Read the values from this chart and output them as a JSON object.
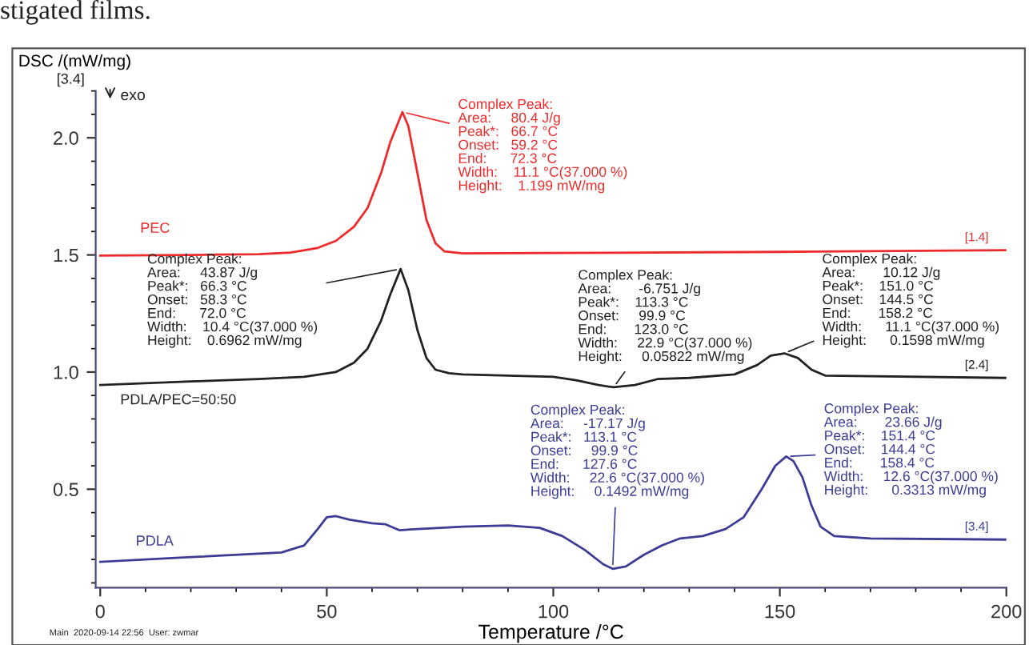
{
  "chart_data": {
    "type": "line",
    "xlabel": "Temperature /°C",
    "ylabel": "DSC /(mW/mg)",
    "xlim": [
      -1,
      200
    ],
    "ylim": [
      0.08,
      2.2
    ],
    "xticks": [
      0,
      50,
      100,
      150,
      200
    ],
    "yticks": [
      0.5,
      {
        "value": 1,
        "label": "1.0"
      },
      1.5,
      {
        "value": 2,
        "label": "2.0"
      }
    ],
    "grid": false,
    "legend": false,
    "marker": "none",
    "line_style": "solid",
    "series": [
      {
        "name": "PEC",
        "color": "#ee2a2a",
        "x": [
          0,
          20,
          35,
          42,
          48,
          52,
          56,
          59,
          62,
          64,
          66.7,
          68,
          70,
          72,
          74,
          76,
          80,
          100,
          150,
          200
        ],
        "values": [
          1.497,
          1.5,
          1.503,
          1.51,
          1.53,
          1.56,
          1.62,
          1.7,
          1.85,
          1.98,
          2.11,
          2.05,
          1.85,
          1.65,
          1.55,
          1.515,
          1.507,
          1.508,
          1.513,
          1.52
        ]
      },
      {
        "name": "PDLA/PEC=50:50",
        "color": "#222222",
        "x": [
          0,
          20,
          35,
          45,
          52,
          56,
          59,
          62,
          64,
          66.3,
          68,
          70,
          72,
          74,
          77,
          80,
          100,
          105,
          110,
          113.3,
          118,
          123,
          130,
          140,
          145,
          148,
          151,
          154,
          157,
          160,
          200
        ],
        "values": [
          0.945,
          0.96,
          0.97,
          0.98,
          1.0,
          1.04,
          1.1,
          1.22,
          1.33,
          1.44,
          1.35,
          1.18,
          1.06,
          1.01,
          0.995,
          0.99,
          0.98,
          0.965,
          0.945,
          0.935,
          0.945,
          0.97,
          0.975,
          0.99,
          1.03,
          1.07,
          1.08,
          1.06,
          1.01,
          0.985,
          0.975
        ]
      },
      {
        "name": "PDLA",
        "color": "#3c3c96",
        "x": [
          0,
          20,
          40,
          45,
          48,
          50,
          52,
          55,
          60,
          63,
          66,
          70,
          80,
          90,
          97,
          102,
          107,
          111,
          113.1,
          116,
          120,
          124,
          128,
          133,
          138,
          142,
          146,
          149,
          151.4,
          153,
          155,
          157,
          159,
          162,
          170,
          200
        ],
        "values": [
          0.19,
          0.21,
          0.23,
          0.26,
          0.33,
          0.38,
          0.385,
          0.37,
          0.355,
          0.35,
          0.325,
          0.33,
          0.34,
          0.345,
          0.335,
          0.3,
          0.24,
          0.18,
          0.16,
          0.17,
          0.22,
          0.26,
          0.29,
          0.3,
          0.33,
          0.38,
          0.5,
          0.6,
          0.64,
          0.62,
          0.55,
          0.43,
          0.34,
          0.3,
          0.29,
          0.285
        ]
      }
    ],
    "annotations": [
      "stigated films.",
      "Main  2020-09-14 22:56  User: zwmar",
      "[3.4]",
      "exo",
      {
        "text": "Complex Peak:\nArea:     80.4 J/g\nPeak*:   66.7 °C\nOnset:   59.2 °C\nEnd:      72.3 °C\nWidth:    11.1 °C(37.000 %)\nHeight:    1.199 mW/mg",
        "x": 66.7,
        "y": 2.11
      },
      {
        "text": "Complex Peak:\nArea:     43.87 J/g\nPeak*:   66.3 °C\nOnset:   58.3 °C\nEnd:      72.0 °C\nWidth:    10.4 °C(37.000 %)\nHeight:    0.6962 mW/mg",
        "x": 66.3,
        "y": 1.44
      },
      {
        "text": "Complex Peak:\nArea:       -6.751 J/g\nPeak*:    113.3 °C\nOnset:     99.9 °C\nEnd:       123.0 °C\nWidth:     22.9 °C(37.000 %)\nHeight:     0.05822 mW/mg",
        "x": 113.3,
        "y": 0.935
      },
      {
        "text": "Complex Peak:\nArea:       10.12 J/g\nPeak*:    151.0 °C\nOnset:    144.5 °C\nEnd:       158.2 °C\nWidth:      11.1 °C(37.000 %)\nHeight:      0.1598 mW/mg",
        "x": 151.0,
        "y": 1.08
      },
      {
        "text": "Complex Peak:\nArea:     -17.17 J/g\nPeak*:   113.1 °C\nOnset:     99.9 °C\nEnd:      127.6 °C\nWidth:     22.6 °C(37.000 %)\nHeight:     0.1492 mW/mg",
        "x": 113.1,
        "y": 0.16
      },
      {
        "text": "Complex Peak:\nArea:       23.66 J/g\nPeak*:    151.4 °C\nOnset:    144.4 °C\nEnd:       158.4 °C\nWidth:     12.6 °C(37.000 %)\nHeight:      0.3313 mW/mg",
        "x": 151.4,
        "y": 0.64
      },
      {
        "text": "[1.4]",
        "x": 200,
        "y": 1.52
      },
      {
        "text": "[2.4]",
        "x": 200,
        "y": 0.975
      },
      {
        "text": "[3.4]",
        "x": 200,
        "y": 0.285
      }
    ]
  }
}
